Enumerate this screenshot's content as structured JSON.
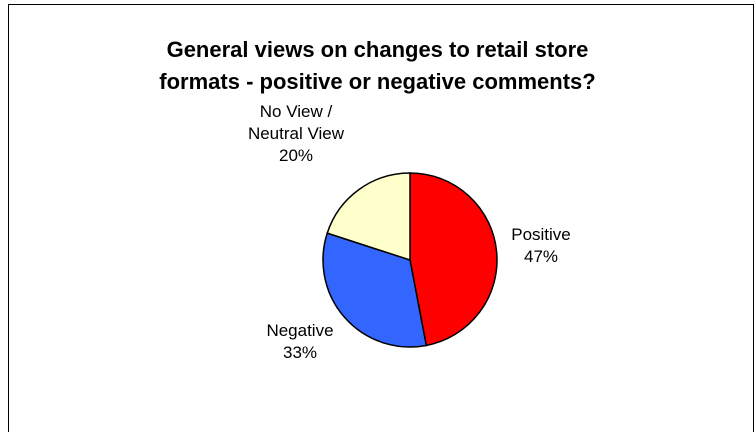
{
  "chart_data": {
    "type": "pie",
    "title_lines": [
      "General views on changes to retail store",
      "formats - positive or negative comments?"
    ],
    "slices": [
      {
        "label": [
          "Positive"
        ],
        "value": 47,
        "value_label": "47%",
        "color": "#ff0000"
      },
      {
        "label": [
          "Negative"
        ],
        "value": 33,
        "value_label": "33%",
        "color": "#3366ff"
      },
      {
        "label": [
          "No View /",
          "Neutral View"
        ],
        "value": 20,
        "value_label": "20%",
        "color": "#ffffcc"
      }
    ],
    "start": "12 o'clock",
    "direction": "clockwise",
    "legend": "none"
  }
}
